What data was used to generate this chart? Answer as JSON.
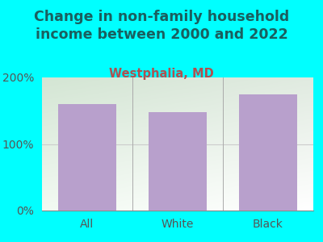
{
  "title": "Change in non-family household\nincome between 2000 and 2022",
  "subtitle": "Westphalia, MD",
  "categories": [
    "All",
    "White",
    "Black"
  ],
  "values": [
    160,
    148,
    175
  ],
  "bar_color": "#b8a0cc",
  "title_color": "#1a5f5f",
  "subtitle_color": "#b05050",
  "background_outer": "#00ffff",
  "ylim": [
    0,
    200
  ],
  "yticks": [
    0,
    100,
    200
  ],
  "ytick_labels": [
    "0%",
    "100%",
    "200%"
  ],
  "grid_color": "#cccccc",
  "title_fontsize": 12.5,
  "subtitle_fontsize": 10.5,
  "tick_fontsize": 10,
  "bar_width": 0.65,
  "separator_color": "#aaaaaa"
}
